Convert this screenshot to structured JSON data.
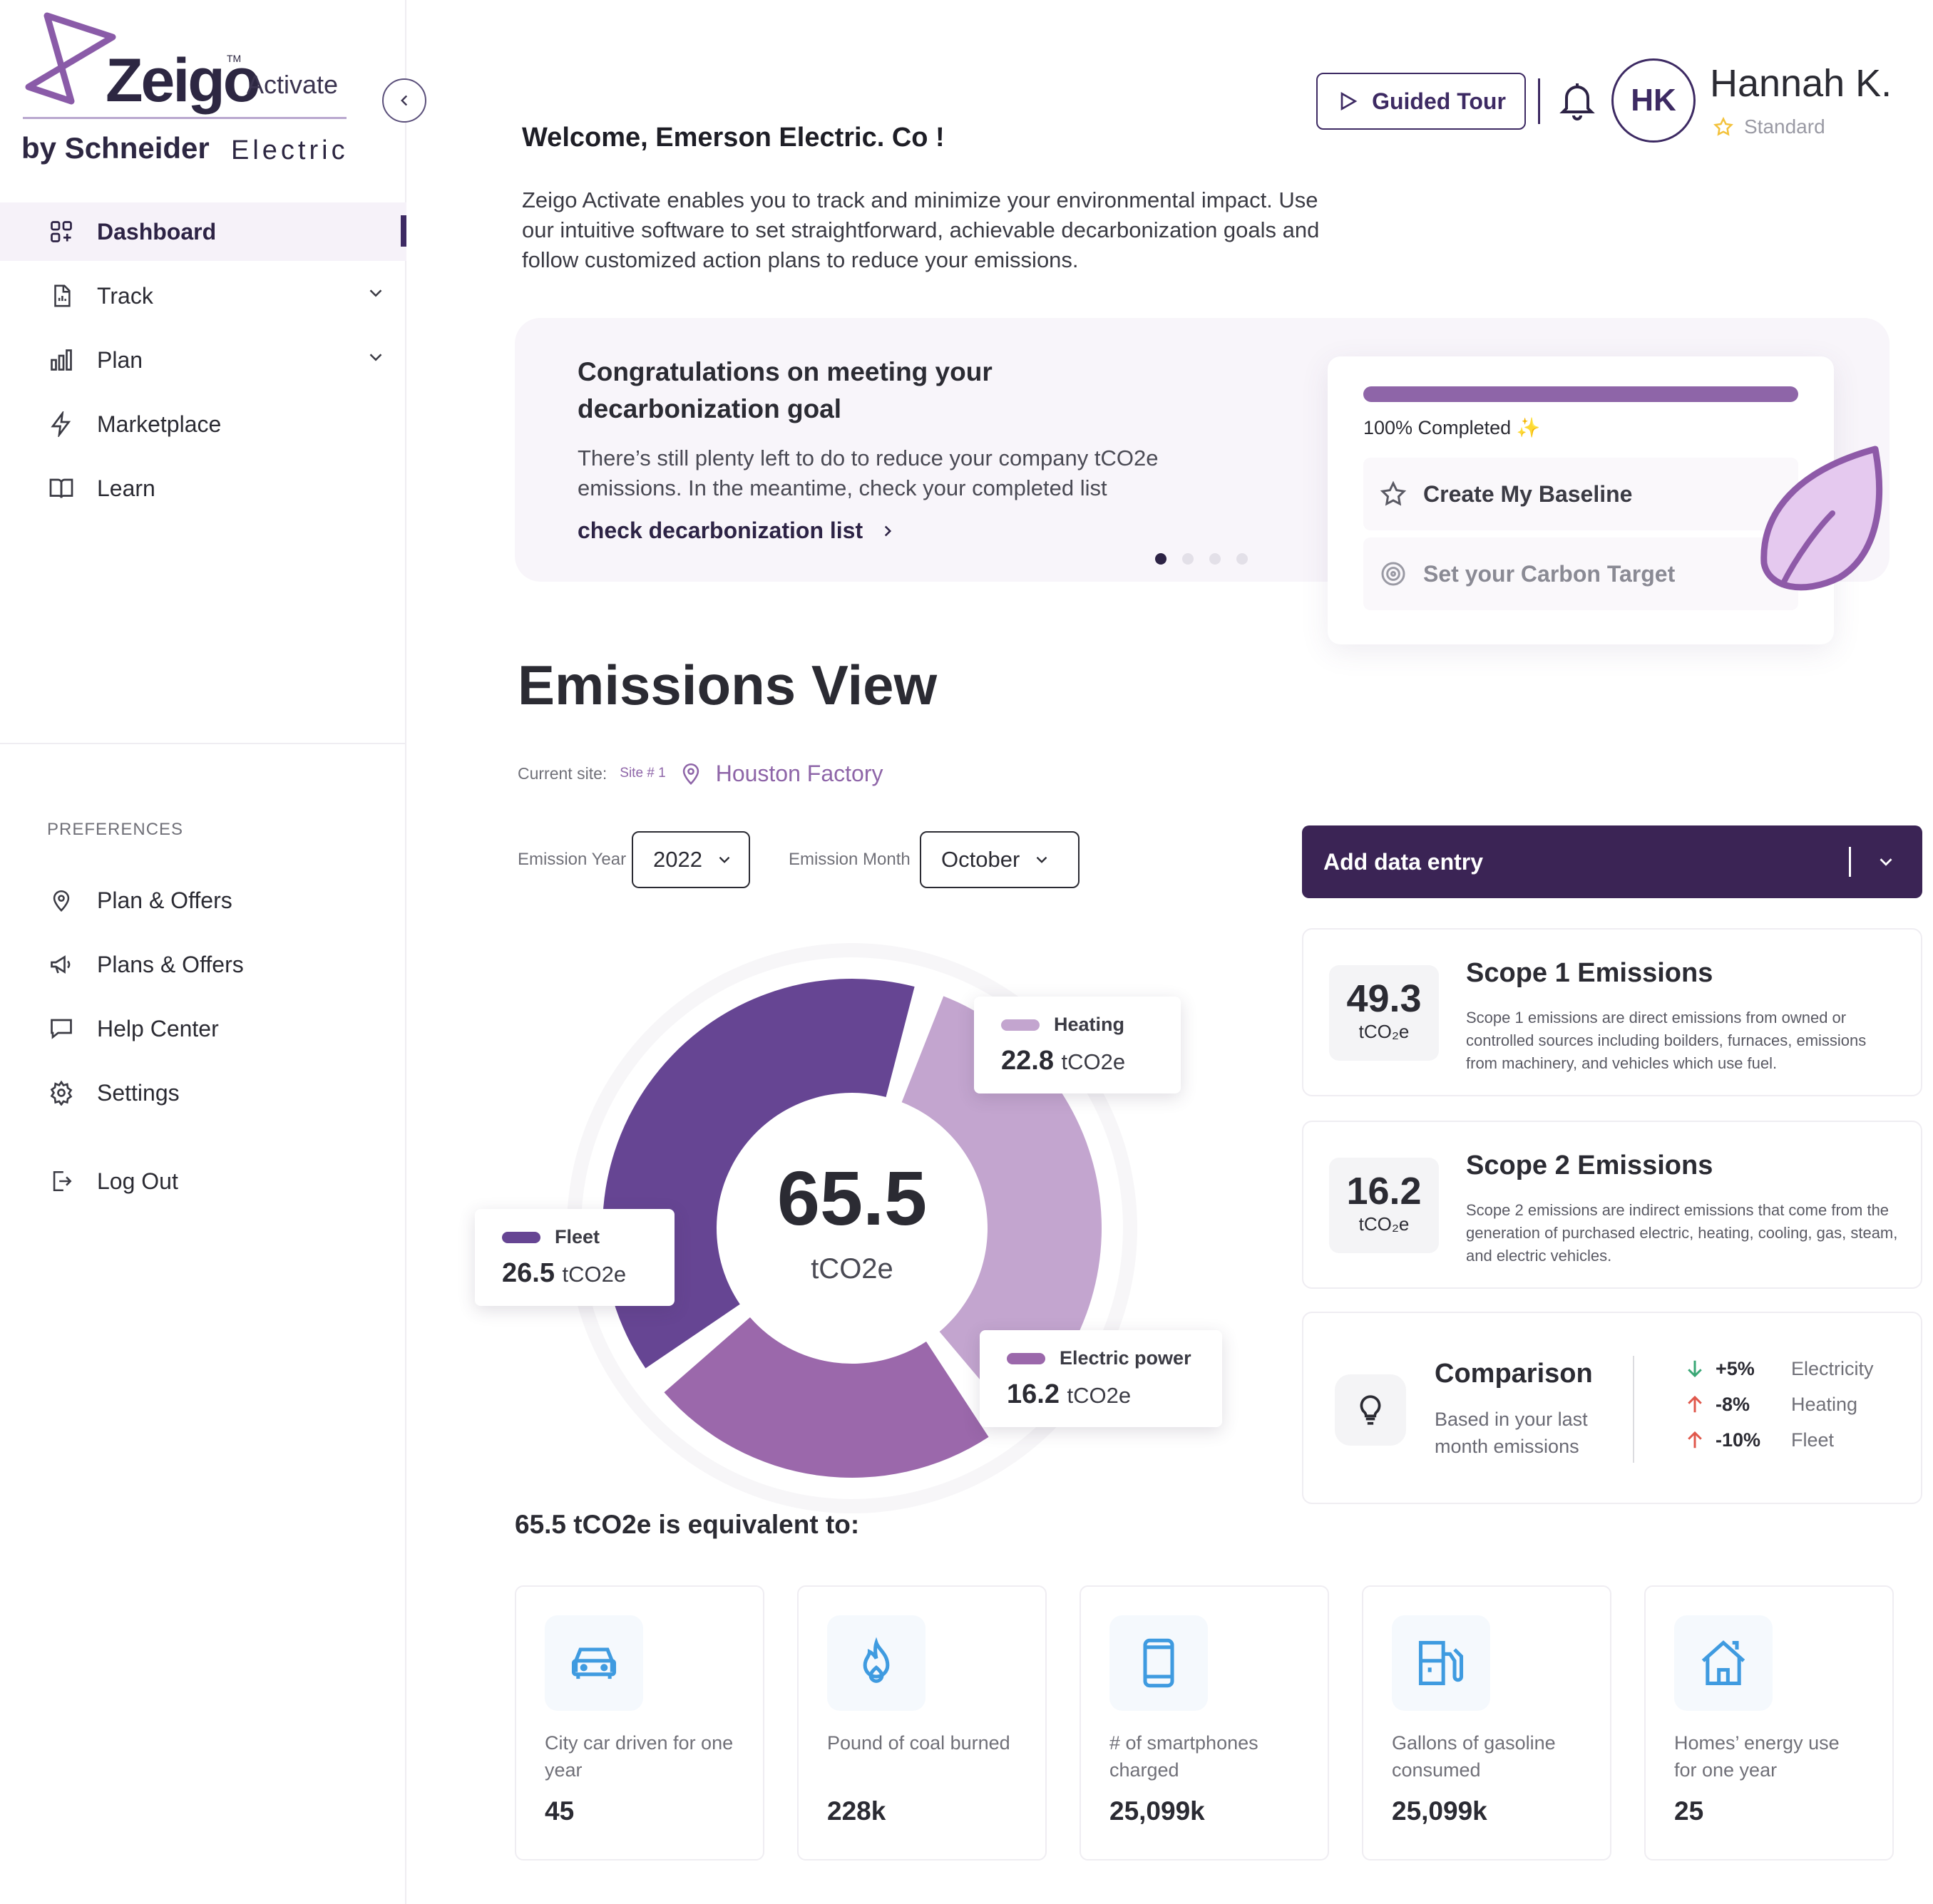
{
  "brand": {
    "name": "Zeigo",
    "tm": "TM",
    "product": "Activate",
    "by": "by Schneider",
    "electric": "Electric"
  },
  "sidebar": {
    "items": [
      {
        "label": "Dashboard",
        "icon": "dashboard-icon"
      },
      {
        "label": "Track",
        "icon": "report-icon"
      },
      {
        "label": "Plan",
        "icon": "bar-chart-icon"
      },
      {
        "label": "Marketplace",
        "icon": "lightning-icon"
      },
      {
        "label": "Learn",
        "icon": "book-icon"
      }
    ],
    "preferences_label": "PREFERENCES",
    "pref_items": [
      {
        "label": "Plan & Offers",
        "icon": "location-pin-icon"
      },
      {
        "label": "Plans & Offers",
        "icon": "megaphone-icon"
      },
      {
        "label": "Help Center",
        "icon": "chat-icon"
      },
      {
        "label": "Settings",
        "icon": "gear-icon"
      }
    ],
    "logout": "Log Out"
  },
  "header": {
    "tour": "Guided Tour",
    "initials": "HK",
    "user_name": "Hannah K.",
    "plan": "Standard"
  },
  "welcome": {
    "title": "Welcome, Emerson Electric. Co !",
    "text": "Zeigo Activate enables you to track and minimize your environmental impact. Use our intuitive software to set straightforward, achievable decarbonization goals and follow customized action plans to reduce your emissions."
  },
  "banner": {
    "title": "Congratulations on meeting your decarbonization goal",
    "text": "There’s still plenty left to do to reduce your company tCO2e emissions. In the meantime, check your completed list",
    "link": "check decarbonization list",
    "progress_label": "100% Completed",
    "progress": 1.0,
    "tasks": [
      "Create My Baseline",
      "Set your Carbon Target"
    ]
  },
  "emissions": {
    "title": "Emissions View",
    "current_site_label": "Current site:",
    "site_num": "Site # 1",
    "site_name": "Houston Factory",
    "year_label": "Emission Year",
    "year": "2022",
    "month_label": "Emission Month",
    "month": "October",
    "add_entry": "Add data entry",
    "total": "65.5",
    "unit": "tCO2e",
    "breakdown": [
      {
        "name": "Heating",
        "value": "22.8",
        "color": "#c3a5cf"
      },
      {
        "name": "Fleet",
        "value": "26.5",
        "color": "#664593"
      },
      {
        "name": "Electric power",
        "value": "16.2",
        "color": "#9b68ab"
      }
    ]
  },
  "scopes": [
    {
      "value": "49.3",
      "unit": "tCO₂e",
      "title": "Scope 1 Emissions",
      "desc": "Scope 1 emissions are direct emissions from owned or controlled sources including boilders, furnaces, emissions from machinery, and vehicles which use fuel."
    },
    {
      "value": "16.2",
      "unit": "tCO₂e",
      "title": "Scope 2 Emissions",
      "desc": "Scope 2 emissions are indirect emissions that come from the generation of purchased electric, heating, cooling, gas, steam, and electric vehicles."
    }
  ],
  "comparison": {
    "title": "Comparison",
    "sub": "Based in your last month emissions",
    "rows": [
      {
        "pct": "+5%",
        "label": "Electricity",
        "dir": "down",
        "color": "#3aa776"
      },
      {
        "pct": "-8%",
        "label": "Heating",
        "dir": "up",
        "color": "#e0584c"
      },
      {
        "pct": "-10%",
        "label": "Fleet",
        "dir": "up",
        "color": "#e0584c"
      }
    ]
  },
  "equivalents": {
    "title": "65.5 tCO2e is equivalent to:",
    "cards": [
      {
        "label": "City car driven for one year",
        "value": "45",
        "icon": "car-icon"
      },
      {
        "label": "Pound of coal burned",
        "value": "228k",
        "icon": "flame-icon"
      },
      {
        "label": "# of smartphones charged",
        "value": "25,099k",
        "icon": "smartphone-icon"
      },
      {
        "label": "Gallons of gasoline consumed",
        "value": "25,099k",
        "icon": "fuel-pump-icon"
      },
      {
        "label": "Homes’ energy use for one year",
        "value": "25",
        "icon": "house-icon"
      }
    ]
  },
  "colors": {
    "brand_dark": "#3b2455",
    "accent": "#8e65a8",
    "icon_blue": "#3f9be0"
  }
}
